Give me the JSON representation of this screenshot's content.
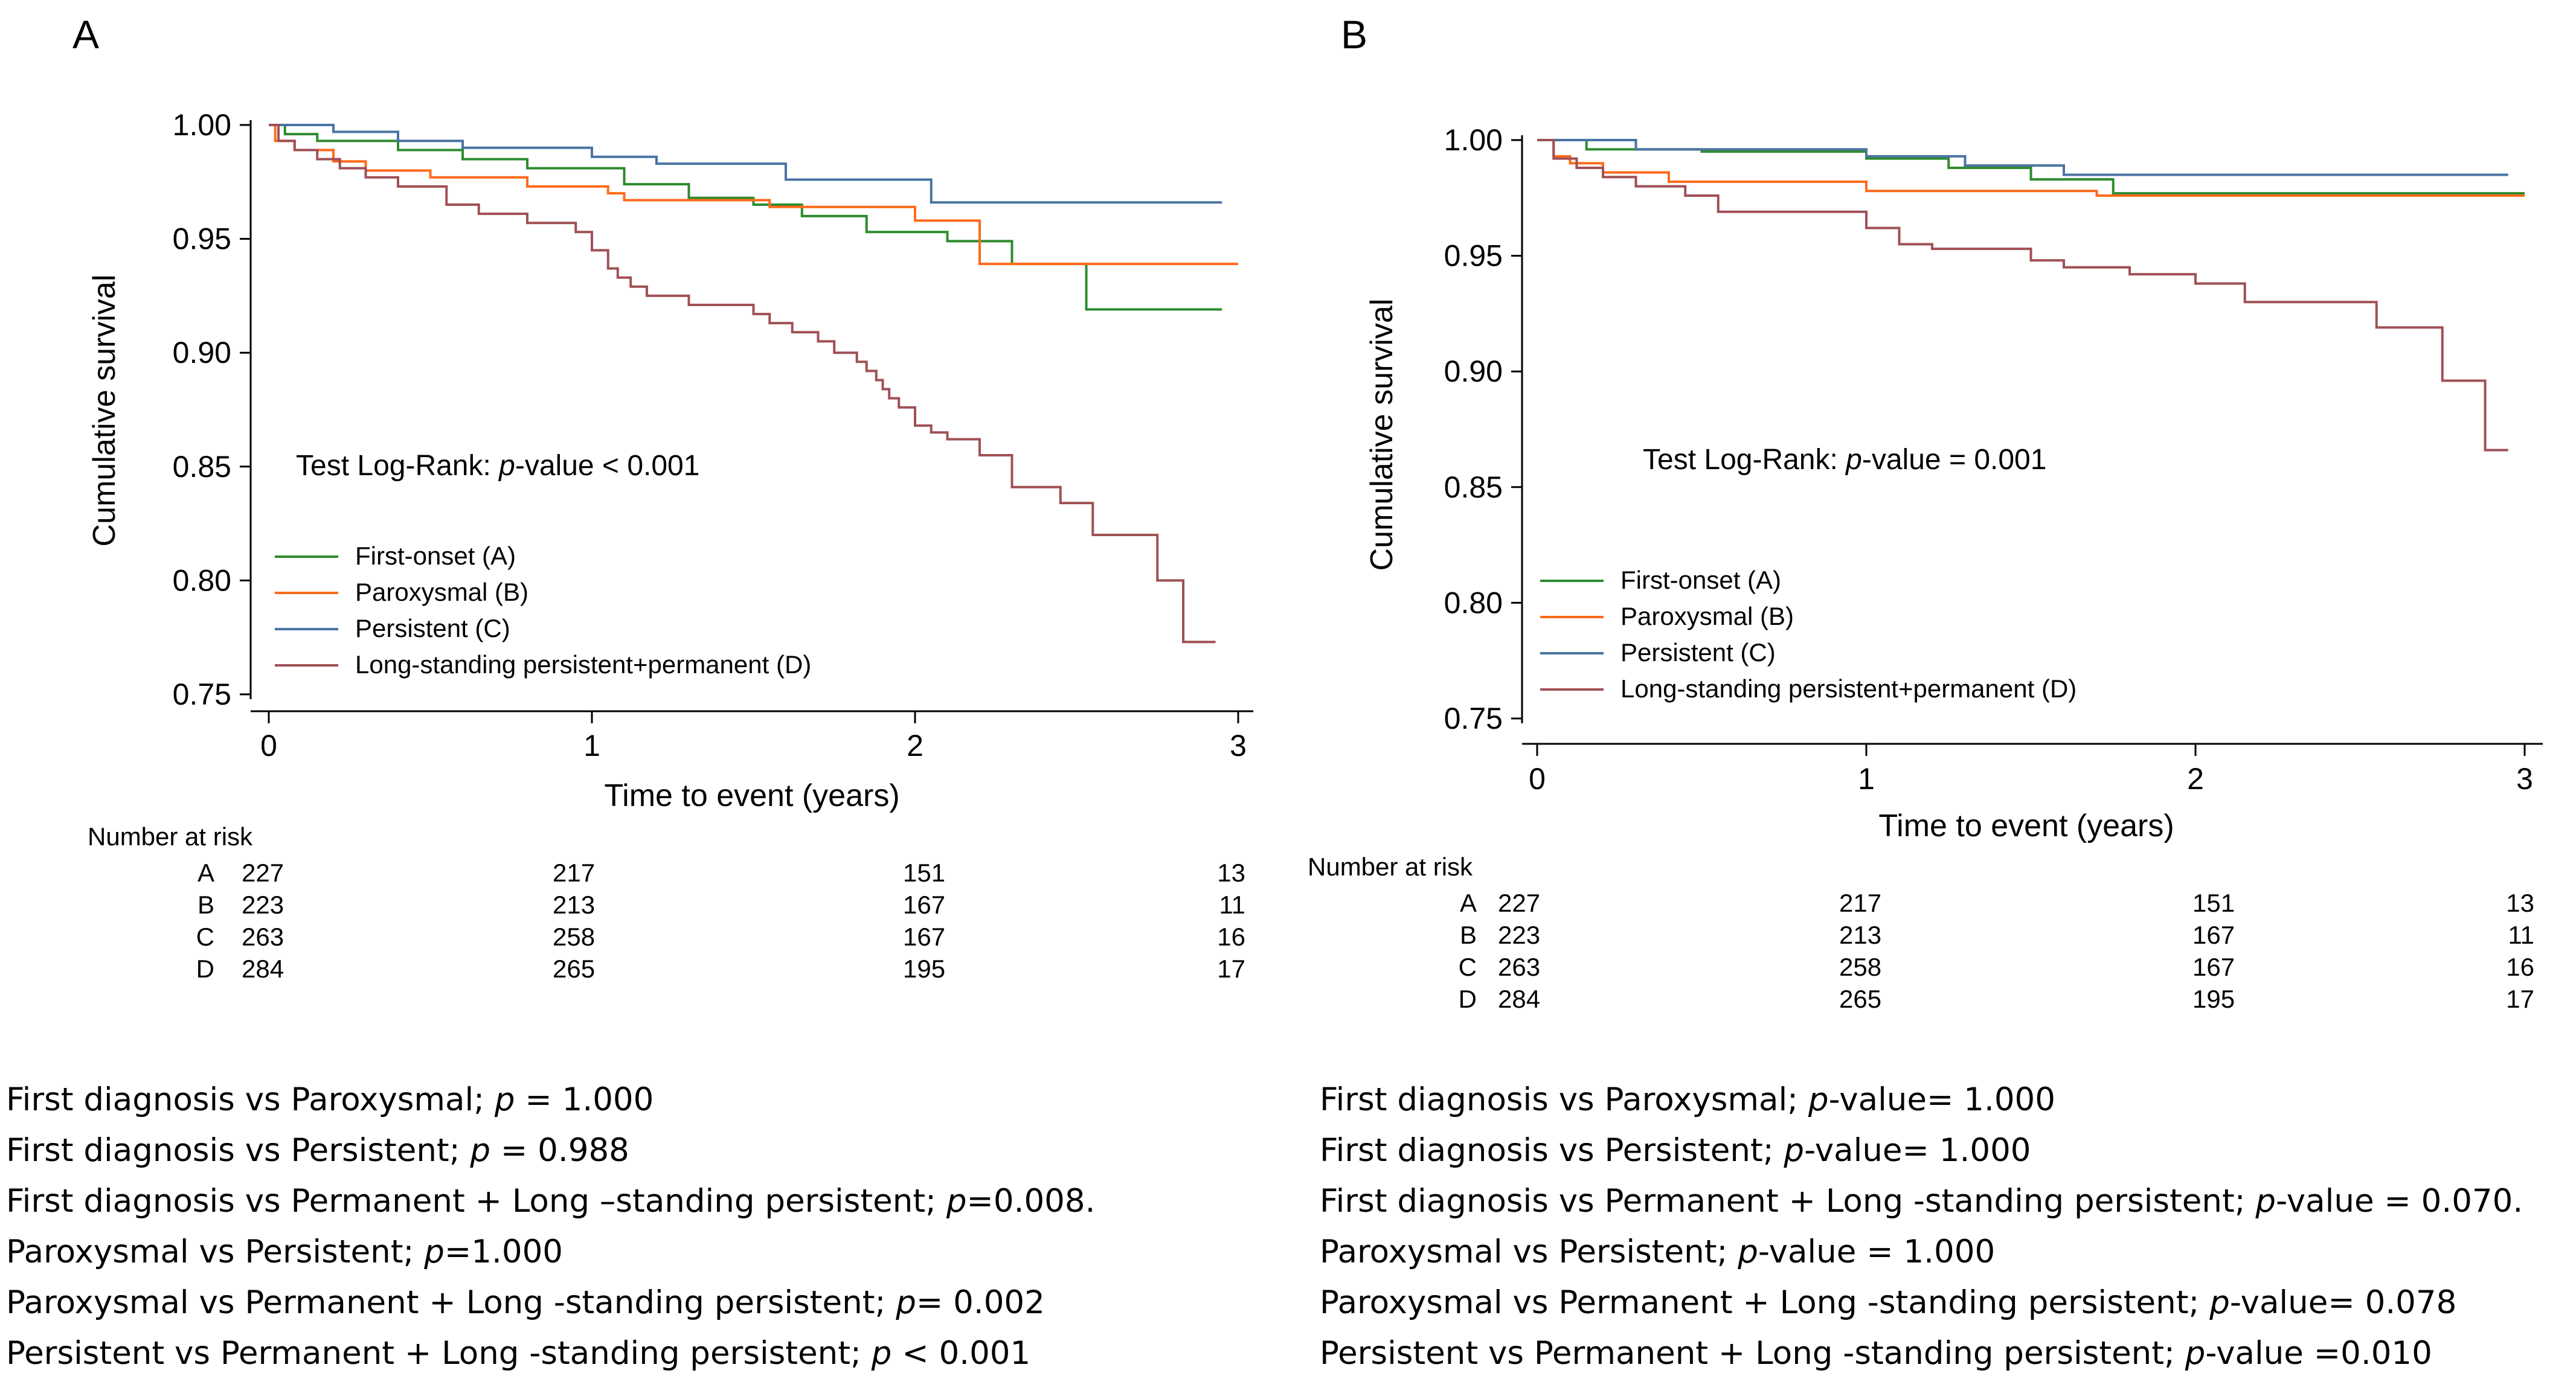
{
  "colors": {
    "A": "#2e8b2e",
    "B": "#ff6a1a",
    "C": "#4a73a3",
    "D": "#a05055",
    "axis": "#000000"
  },
  "chart_data": [
    {
      "panel_label": "A",
      "type": "line",
      "title": "",
      "xlabel": "Time to event (years)",
      "ylabel": "Cumulative survival",
      "xlim": [
        0,
        3
      ],
      "ylim": [
        0.75,
        1.0
      ],
      "xticks": [
        "0",
        "1",
        "2",
        "3"
      ],
      "yticks": [
        "0.75",
        "0.80",
        "0.85",
        "0.90",
        "0.95",
        "1.00"
      ],
      "annotation": {
        "prefix": "Test Log-Rank: ",
        "italic": "p",
        "suffix": "-value < 0.001"
      },
      "legend": [
        "First-onset (A)",
        "Paroxysmal (B)",
        "Persistent (C)",
        "Long-standing persistent+permanent (D)"
      ],
      "series": [
        {
          "name": "First-onset (A)",
          "key": "A",
          "x": [
            0,
            0.05,
            0.15,
            0.4,
            0.6,
            0.8,
            1.1,
            1.3,
            1.5,
            1.65,
            1.85,
            2.1,
            2.3,
            2.53,
            2.95
          ],
          "y": [
            1.0,
            0.996,
            0.993,
            0.989,
            0.985,
            0.981,
            0.974,
            0.968,
            0.965,
            0.96,
            0.953,
            0.949,
            0.939,
            0.919,
            0.919
          ]
        },
        {
          "name": "Paroxysmal (B)",
          "key": "B",
          "x": [
            0,
            0.02,
            0.08,
            0.2,
            0.3,
            0.5,
            0.8,
            1.05,
            1.1,
            1.55,
            2.0,
            2.2,
            3.0
          ],
          "y": [
            1.0,
            0.993,
            0.989,
            0.984,
            0.98,
            0.977,
            0.973,
            0.97,
            0.967,
            0.964,
            0.958,
            0.939,
            0.939
          ]
        },
        {
          "name": "Persistent (C)",
          "key": "C",
          "x": [
            0,
            0.2,
            0.4,
            0.6,
            1.0,
            1.2,
            1.6,
            2.05,
            2.95
          ],
          "y": [
            1.0,
            0.997,
            0.993,
            0.99,
            0.986,
            0.983,
            0.976,
            0.966,
            0.966
          ]
        },
        {
          "name": "Long-standing persistent+permanent (D)",
          "key": "D",
          "x": [
            0,
            0.03,
            0.08,
            0.15,
            0.22,
            0.3,
            0.4,
            0.55,
            0.65,
            0.8,
            0.95,
            1.0,
            1.05,
            1.08,
            1.12,
            1.17,
            1.3,
            1.5,
            1.55,
            1.62,
            1.7,
            1.75,
            1.82,
            1.85,
            1.88,
            1.9,
            1.92,
            1.95,
            2.0,
            2.05,
            2.1,
            2.2,
            2.3,
            2.45,
            2.55,
            2.75,
            2.83,
            2.93
          ],
          "y": [
            1.0,
            0.993,
            0.989,
            0.985,
            0.981,
            0.977,
            0.973,
            0.965,
            0.961,
            0.957,
            0.953,
            0.945,
            0.937,
            0.933,
            0.929,
            0.925,
            0.921,
            0.917,
            0.913,
            0.909,
            0.905,
            0.9,
            0.896,
            0.892,
            0.888,
            0.884,
            0.88,
            0.876,
            0.868,
            0.865,
            0.862,
            0.855,
            0.841,
            0.834,
            0.82,
            0.8,
            0.773,
            0.773
          ]
        }
      ],
      "risk_table": {
        "title": "Number at risk",
        "rows": [
          {
            "group": "A",
            "values": [
              "227",
              "217",
              "151",
              "13"
            ]
          },
          {
            "group": "B",
            "values": [
              "223",
              "213",
              "167",
              "11"
            ]
          },
          {
            "group": "C",
            "values": [
              "263",
              "258",
              "167",
              "16"
            ]
          },
          {
            "group": "D",
            "values": [
              "284",
              "265",
              "195",
              "17"
            ]
          }
        ]
      }
    },
    {
      "panel_label": "B",
      "type": "line",
      "title": "",
      "xlabel": "Time to event (years)",
      "ylabel": "Cumulative survival",
      "xlim": [
        0,
        3
      ],
      "ylim": [
        0.75,
        1.0
      ],
      "xticks": [
        "0",
        "1",
        "2",
        "3"
      ],
      "yticks": [
        "0.75",
        "0.80",
        "0.85",
        "0.90",
        "0.95",
        "1.00"
      ],
      "annotation": {
        "prefix": "Test Log-Rank: ",
        "italic": "p",
        "suffix": "-value = 0.001"
      },
      "legend": [
        "First-onset (A)",
        "Paroxysmal (B)",
        "Persistent (C)",
        "Long-standing persistent+permanent (D)"
      ],
      "series": [
        {
          "name": "First-onset (A)",
          "key": "A",
          "x": [
            0,
            0.15,
            0.5,
            1.0,
            1.25,
            1.5,
            1.75,
            3.0
          ],
          "y": [
            1.0,
            0.996,
            0.995,
            0.992,
            0.988,
            0.983,
            0.977,
            0.977
          ]
        },
        {
          "name": "Paroxysmal (B)",
          "key": "B",
          "x": [
            0,
            0.05,
            0.1,
            0.2,
            0.4,
            1.0,
            1.7,
            3.0
          ],
          "y": [
            1.0,
            0.993,
            0.99,
            0.986,
            0.982,
            0.978,
            0.976,
            0.976
          ]
        },
        {
          "name": "Persistent (C)",
          "key": "C",
          "x": [
            0,
            0.3,
            1.0,
            1.3,
            1.6,
            2.95
          ],
          "y": [
            1.0,
            0.996,
            0.993,
            0.989,
            0.985,
            0.985
          ]
        },
        {
          "name": "Long-standing persistent+permanent (D)",
          "key": "D",
          "x": [
            0,
            0.05,
            0.12,
            0.2,
            0.3,
            0.45,
            0.55,
            1.0,
            1.1,
            1.2,
            1.5,
            1.6,
            1.8,
            2.0,
            2.15,
            2.55,
            2.75,
            2.88,
            2.95
          ],
          "y": [
            1.0,
            0.992,
            0.988,
            0.984,
            0.98,
            0.976,
            0.969,
            0.962,
            0.955,
            0.953,
            0.948,
            0.945,
            0.942,
            0.938,
            0.93,
            0.919,
            0.896,
            0.866,
            0.866
          ]
        }
      ],
      "risk_table": {
        "title": "Number at risk",
        "rows": [
          {
            "group": "A",
            "values": [
              "227",
              "217",
              "151",
              "13"
            ]
          },
          {
            "group": "B",
            "values": [
              "223",
              "213",
              "167",
              "11"
            ]
          },
          {
            "group": "C",
            "values": [
              "263",
              "258",
              "167",
              "16"
            ]
          },
          {
            "group": "D",
            "values": [
              "284",
              "265",
              "195",
              "17"
            ]
          }
        ]
      }
    }
  ],
  "comparisons_left": [
    {
      "text": "First diagnosis vs Paroxysmal; ",
      "italic": "p",
      "rest": " = 1.000"
    },
    {
      "text": "First diagnosis vs Persistent; ",
      "italic": "p",
      "rest": " = 0.988"
    },
    {
      "text": "First diagnosis vs Permanent + Long –standing persistent; ",
      "italic": "p",
      "rest": "=0.008."
    },
    {
      "text": "Paroxysmal vs Persistent; ",
      "italic": "p",
      "rest": "=1.000"
    },
    {
      "text": "Paroxysmal vs Permanent + Long -standing persistent; ",
      "italic": "p",
      "rest": "= 0.002"
    },
    {
      "text": "Persistent vs Permanent + Long -standing persistent; ",
      "italic": "p",
      "rest": " < 0.001"
    }
  ],
  "comparisons_right": [
    {
      "text": "First diagnosis vs Paroxysmal; ",
      "italic": "p",
      "rest": "-value= 1.000"
    },
    {
      "text": "First diagnosis vs Persistent; ",
      "italic": "p",
      "rest": "-value= 1.000"
    },
    {
      "text": "First diagnosis vs Permanent + Long -standing persistent; ",
      "italic": "p",
      "rest": "-value = 0.070."
    },
    {
      "text": "Paroxysmal vs Persistent; ",
      "italic": "p",
      "rest": "-value = 1.000"
    },
    {
      "text": "Paroxysmal vs Permanent + Long -standing persistent; ",
      "italic": "p",
      "rest": "-value= 0.078"
    },
    {
      "text": "Persistent vs Permanent + Long -standing persistent; ",
      "italic": "p",
      "rest": "-value =0.010"
    }
  ]
}
